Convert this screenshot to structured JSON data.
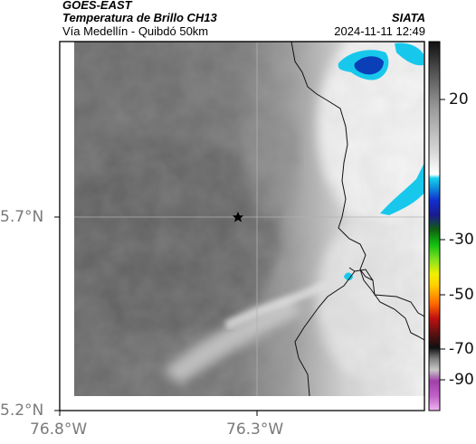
{
  "header": {
    "satellite": "GOES-EAST",
    "product": "Temperatura de Brillo CH13",
    "region": "Vía Medellín - Quibdó 50km",
    "org": "SIATA",
    "datetime": "2024-11-11 12:49"
  },
  "map": {
    "lat_ticks": [
      "5.7°N",
      "5.2°N"
    ],
    "lon_ticks": [
      "76.8°W",
      "76.3°W"
    ],
    "marker": "star-marker"
  },
  "colorbar": {
    "ticks": [
      "20",
      "-30",
      "-50",
      "-70",
      "-90"
    ]
  },
  "colors": {
    "cold_cloud": "#0a3fb8",
    "cyan": "#18c8ec",
    "frame": "#000000"
  }
}
